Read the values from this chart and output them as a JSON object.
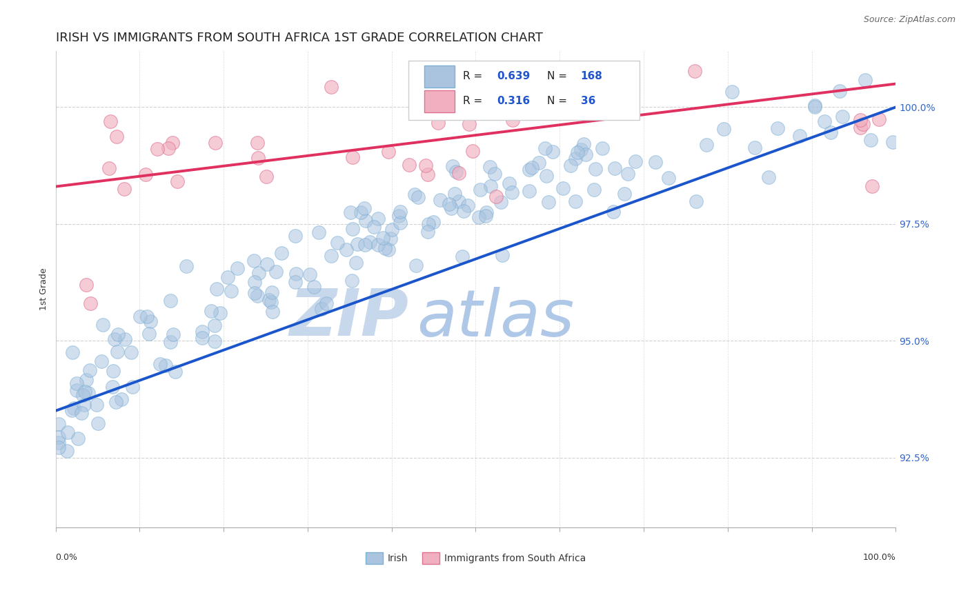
{
  "title": "IRISH VS IMMIGRANTS FROM SOUTH AFRICA 1ST GRADE CORRELATION CHART",
  "source_text": "Source: ZipAtlas.com",
  "ylabel": "1st Grade",
  "ylabel_right_ticks": [
    92.5,
    95.0,
    97.5,
    100.0
  ],
  "ylabel_right_labels": [
    "92.5%",
    "95.0%",
    "97.5%",
    "100.0%"
  ],
  "irish_color": "#aac4e0",
  "irish_edge": "#7bafd4",
  "sa_color": "#f0b0c0",
  "sa_edge": "#e07090",
  "blue_line_color": "#1a55cc",
  "red_line_color": "#e03060",
  "watermark_zip": "ZIP",
  "watermark_atlas": "atlas",
  "background_color": "#ffffff",
  "grid_color": "#cccccc",
  "title_fontsize": 13,
  "watermark_color": "#c8d8ec",
  "watermark_atlas_color": "#b0c8e8",
  "xmin": 0.0,
  "xmax": 1.0,
  "ymin": 91.0,
  "ymax": 101.2,
  "blue_line_x0": 0.0,
  "blue_line_y0": 93.5,
  "blue_line_x1": 1.0,
  "blue_line_y1": 100.0,
  "red_line_x0": 0.0,
  "red_line_y0": 98.3,
  "red_line_x1": 1.0,
  "red_line_y1": 100.5,
  "legend_R_irish": "0.639",
  "legend_N_irish": "168",
  "legend_R_sa": "0.316",
  "legend_N_sa": "36"
}
